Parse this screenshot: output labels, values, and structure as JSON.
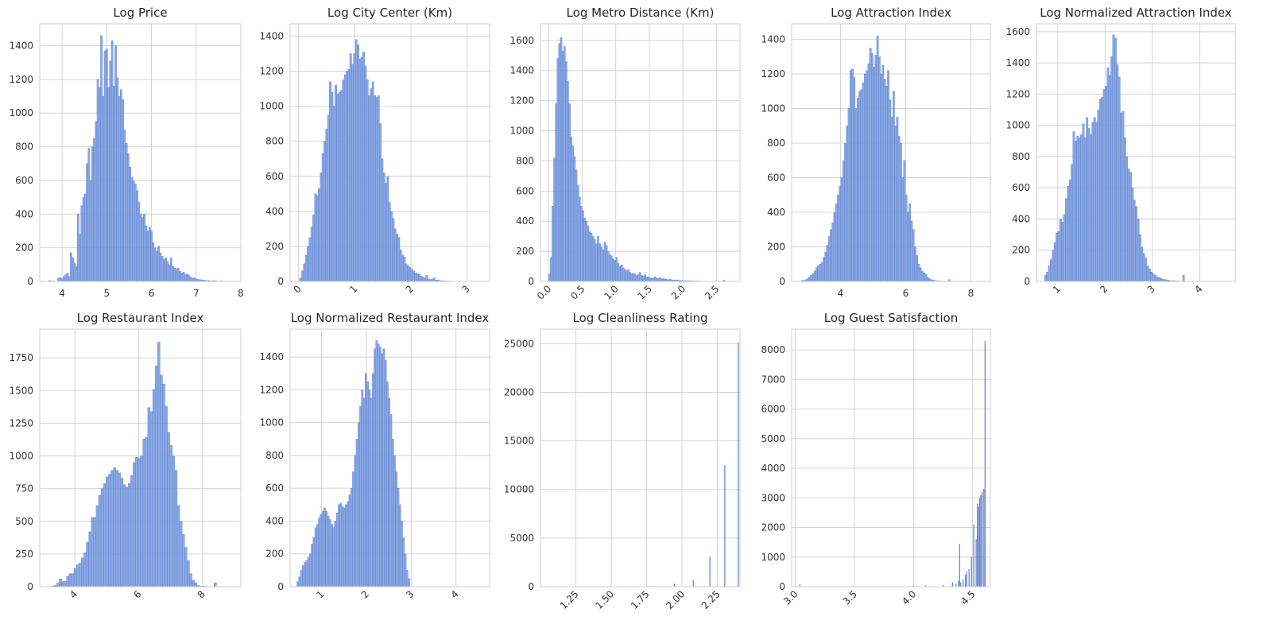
{
  "figure": {
    "bar_color": "#7d9fe0",
    "bar_edge": "#5b7fcf",
    "grid": true
  },
  "chart_data": [
    {
      "type": "bar",
      "title": "Log Price",
      "xlim": [
        3.5,
        8.0
      ],
      "ylim": [
        0,
        1530
      ],
      "xticks": [
        4,
        5,
        6,
        7,
        8
      ],
      "xtick_labels": [
        "4",
        "5",
        "6",
        "7",
        "8"
      ],
      "yticks": [
        0,
        200,
        400,
        600,
        800,
        1000,
        1200,
        1400
      ],
      "ytick_labels": [
        "0",
        "200",
        "400",
        "600",
        "800",
        "1000",
        "1200",
        "1400"
      ],
      "xtick_rotation": 0,
      "bin_start": 3.7,
      "bin_width": 0.04,
      "counts": [
        5,
        0,
        3,
        0,
        0,
        20,
        22,
        15,
        30,
        40,
        50,
        30,
        170,
        140,
        110,
        90,
        400,
        280,
        450,
        500,
        520,
        700,
        790,
        600,
        800,
        850,
        950,
        1200,
        1150,
        1460,
        1100,
        1370,
        1380,
        1150,
        1310,
        1430,
        1160,
        1400,
        1210,
        1100,
        1140,
        1080,
        900,
        820,
        760,
        680,
        620,
        600,
        580,
        540,
        470,
        400,
        380,
        400,
        330,
        300,
        320,
        300,
        230,
        200,
        180,
        210,
        170,
        150,
        130,
        140,
        120,
        100,
        140,
        90,
        80,
        75,
        80,
        60,
        50,
        55,
        40,
        45,
        35,
        25,
        20,
        20,
        15,
        12,
        10,
        10,
        8,
        6,
        5,
        5,
        4,
        3,
        5,
        3,
        2,
        2,
        3,
        1,
        2,
        1,
        1,
        2,
        1,
        1
      ]
    },
    {
      "type": "bar",
      "title": "Log City Center (Km)",
      "xlim": [
        -0.15,
        3.4
      ],
      "ylim": [
        0,
        1470
      ],
      "xticks": [
        0,
        1,
        2,
        3
      ],
      "xtick_labels": [
        "0",
        "1",
        "2",
        "3"
      ],
      "yticks": [
        0,
        200,
        400,
        600,
        800,
        1000,
        1200,
        1400
      ],
      "ytick_labels": [
        "0",
        "200",
        "400",
        "600",
        "800",
        "1000",
        "1200",
        "1400"
      ],
      "xtick_rotation": -45,
      "bin_start": 0.02,
      "bin_width": 0.033,
      "counts": [
        20,
        60,
        100,
        150,
        200,
        250,
        310,
        380,
        500,
        490,
        530,
        620,
        730,
        800,
        870,
        950,
        1140,
        1080,
        1000,
        1120,
        1070,
        1080,
        1090,
        1150,
        1180,
        1200,
        1210,
        1300,
        1240,
        1300,
        1380,
        1350,
        1270,
        1280,
        1310,
        1230,
        1150,
        1060,
        1100,
        1140,
        1060,
        1050,
        1060,
        900,
        700,
        620,
        560,
        600,
        450,
        400,
        360,
        300,
        270,
        250,
        180,
        150,
        140,
        100,
        90,
        80,
        70,
        60,
        50,
        45,
        40,
        30,
        25,
        20,
        35,
        15,
        10,
        12,
        20,
        8,
        8,
        5,
        4,
        4,
        3,
        3,
        2,
        2,
        1,
        1,
        1,
        1,
        1,
        1,
        1,
        1,
        0,
        1,
        1,
        1,
        1,
        1
      ]
    },
    {
      "type": "bar",
      "title": "Log Metro Distance (Km)",
      "xlim": [
        -0.12,
        2.85
      ],
      "ylim": [
        0,
        1710
      ],
      "xticks": [
        0.0,
        0.5,
        1.0,
        1.5,
        2.0,
        2.5
      ],
      "xtick_labels": [
        "0.0",
        "0.5",
        "1.0",
        "1.5",
        "2.0",
        "2.5"
      ],
      "yticks": [
        0,
        200,
        400,
        600,
        800,
        1000,
        1200,
        1400,
        1600
      ],
      "ytick_labels": [
        "0",
        "200",
        "400",
        "600",
        "800",
        "1000",
        "1200",
        "1400",
        "1600"
      ],
      "xtick_rotation": -45,
      "bin_start": 0.0,
      "bin_width": 0.025,
      "counts": [
        50,
        160,
        500,
        820,
        1180,
        1480,
        1580,
        1620,
        1530,
        1560,
        1460,
        1330,
        1180,
        960,
        900,
        830,
        740,
        640,
        560,
        500,
        470,
        420,
        400,
        370,
        330,
        320,
        300,
        280,
        250,
        300,
        250,
        230,
        210,
        260,
        240,
        200,
        180,
        170,
        150,
        140,
        160,
        120,
        100,
        110,
        90,
        80,
        70,
        80,
        60,
        50,
        55,
        50,
        40,
        45,
        60,
        40,
        35,
        45,
        30,
        30,
        25,
        20,
        25,
        30,
        20,
        20,
        25,
        15,
        20,
        15,
        15,
        10,
        15,
        10,
        10,
        8,
        10,
        8,
        6,
        6,
        5,
        5,
        5,
        4,
        4,
        3,
        3,
        3,
        3,
        2,
        2,
        2,
        2,
        2,
        1,
        1,
        1,
        1,
        1,
        1,
        1,
        1,
        1,
        1,
        8
      ]
    },
    {
      "type": "bar",
      "title": "Log Attraction Index",
      "xlim": [
        2.5,
        8.6
      ],
      "ylim": [
        0,
        1490
      ],
      "xticks": [
        4,
        6,
        8
      ],
      "xtick_labels": [
        "4",
        "6",
        "8"
      ],
      "yticks": [
        0,
        200,
        400,
        600,
        800,
        1000,
        1200,
        1400
      ],
      "ytick_labels": [
        "0",
        "200",
        "400",
        "600",
        "800",
        "1000",
        "1200",
        "1400"
      ],
      "xtick_rotation": 0,
      "bin_start": 2.8,
      "bin_width": 0.055,
      "counts": [
        5,
        5,
        10,
        15,
        25,
        35,
        45,
        60,
        80,
        90,
        100,
        110,
        140,
        170,
        210,
        260,
        300,
        340,
        400,
        450,
        500,
        550,
        600,
        700,
        800,
        900,
        1000,
        1220,
        1230,
        1180,
        1000,
        1060,
        1100,
        1110,
        1150,
        1200,
        1220,
        1260,
        1350,
        1320,
        1240,
        1310,
        1420,
        1300,
        1200,
        1250,
        1170,
        1130,
        1220,
        1050,
        950,
        1100,
        900,
        950,
        840,
        800,
        600,
        700,
        500,
        400,
        450,
        350,
        300,
        200,
        150,
        100,
        80,
        60,
        50,
        40,
        25,
        15,
        10,
        8,
        5,
        4,
        3,
        2,
        2,
        1,
        1,
        1,
        10
      ]
    },
    {
      "type": "bar",
      "title": "Log Normalized Attraction Index",
      "xlim": [
        0.55,
        4.75
      ],
      "ylim": [
        0,
        1650
      ],
      "xticks": [
        1,
        2,
        3,
        4
      ],
      "xtick_labels": [
        "1",
        "2",
        "3",
        "4"
      ],
      "yticks": [
        0,
        200,
        400,
        600,
        800,
        1000,
        1200,
        1400,
        1600
      ],
      "ytick_labels": [
        "0",
        "200",
        "400",
        "600",
        "800",
        "1000",
        "1200",
        "1400",
        "1600"
      ],
      "xtick_rotation": -45,
      "bin_start": 0.72,
      "bin_width": 0.04,
      "counts": [
        40,
        60,
        100,
        140,
        200,
        250,
        310,
        320,
        400,
        380,
        430,
        530,
        610,
        650,
        750,
        960,
        900,
        930,
        920,
        940,
        1010,
        920,
        1050,
        980,
        940,
        1020,
        1050,
        1020,
        1100,
        1170,
        1180,
        1230,
        1250,
        1370,
        1320,
        1440,
        1580,
        1560,
        1390,
        1310,
        1080,
        1090,
        920,
        800,
        720,
        700,
        600,
        520,
        480,
        400,
        300,
        220,
        180,
        150,
        100,
        80,
        60,
        50,
        40,
        30,
        25,
        20,
        15,
        12,
        10,
        8,
        5,
        5,
        4,
        3,
        3,
        2,
        2,
        40
      ]
    },
    {
      "type": "bar",
      "title": "Log Restaurant Index",
      "xlim": [
        2.9,
        9.2
      ],
      "ylim": [
        0,
        1970
      ],
      "xticks": [
        4,
        6,
        8
      ],
      "xtick_labels": [
        "4",
        "6",
        "8"
      ],
      "yticks": [
        0,
        250,
        500,
        750,
        1000,
        1250,
        1500,
        1750
      ],
      "ytick_labels": [
        "0",
        "250",
        "500",
        "750",
        "1000",
        "1250",
        "1500",
        "1750"
      ],
      "xtick_rotation": -45,
      "bin_start": 3.28,
      "bin_width": 0.077,
      "counts": [
        5,
        10,
        30,
        60,
        40,
        40,
        80,
        100,
        100,
        140,
        170,
        180,
        220,
        260,
        340,
        420,
        530,
        530,
        620,
        700,
        750,
        790,
        840,
        860,
        890,
        910,
        890,
        870,
        830,
        780,
        760,
        790,
        850,
        950,
        990,
        980,
        1000,
        1130,
        1140,
        1370,
        1340,
        1510,
        1690,
        1870,
        1620,
        1550,
        1380,
        1180,
        1080,
        1000,
        890,
        620,
        500,
        400,
        300,
        200,
        100,
        50,
        30,
        10,
        5,
        5,
        3,
        2,
        2,
        1,
        30
      ]
    },
    {
      "type": "bar",
      "title": "Log Normalized Restaurant Index",
      "xlim": [
        0.3,
        4.75
      ],
      "ylim": [
        0,
        1570
      ],
      "xticks": [
        1,
        2,
        3,
        4
      ],
      "xtick_labels": [
        "1",
        "2",
        "3",
        "4"
      ],
      "yticks": [
        0,
        200,
        400,
        600,
        800,
        1000,
        1200,
        1400
      ],
      "ytick_labels": [
        "0",
        "200",
        "400",
        "600",
        "800",
        "1000",
        "1200",
        "1400"
      ],
      "xtick_rotation": -45,
      "bin_start": 0.45,
      "bin_width": 0.04,
      "counts": [
        30,
        60,
        100,
        130,
        150,
        160,
        180,
        200,
        260,
        300,
        360,
        380,
        420,
        440,
        460,
        480,
        460,
        430,
        410,
        380,
        360,
        400,
        450,
        500,
        510,
        490,
        480,
        500,
        520,
        560,
        600,
        700,
        800,
        900,
        1000,
        1100,
        1200,
        1150,
        1300,
        1250,
        1200,
        1150,
        1300,
        1450,
        1500,
        1480,
        1460,
        1420,
        1450,
        1380,
        1250,
        1150,
        1050,
        900,
        800,
        700,
        600,
        500,
        400,
        300,
        200,
        100,
        50
      ]
    },
    {
      "type": "bar",
      "title": "Log Cleanliness Rating",
      "xlim": [
        1.0,
        2.41
      ],
      "ylim": [
        0,
        26500
      ],
      "xticks": [
        1.25,
        1.5,
        1.75,
        2.0,
        2.25
      ],
      "xtick_labels": [
        "1.25",
        "1.50",
        "1.75",
        "2.00",
        "2.25"
      ],
      "yticks": [
        0,
        5000,
        10000,
        15000,
        20000,
        25000
      ],
      "ytick_labels": [
        "0",
        "5000",
        "10000",
        "15000",
        "20000",
        "25000"
      ],
      "xtick_rotation": -45,
      "x": [
        1.0986,
        1.3863,
        1.6094,
        1.7918,
        1.9459,
        2.0794,
        2.1972,
        2.3026,
        2.3979
      ],
      "values": [
        60,
        30,
        50,
        90,
        300,
        700,
        3100,
        12500,
        25100
      ]
    },
    {
      "type": "bar",
      "title": "Log Guest Satisfaction",
      "xlim": [
        2.97,
        4.65
      ],
      "ylim": [
        0,
        8700
      ],
      "xticks": [
        3.0,
        3.5,
        4.0,
        4.5
      ],
      "xtick_labels": [
        "3.0",
        "3.5",
        "4.0",
        "4.5"
      ],
      "yticks": [
        0,
        1000,
        2000,
        3000,
        4000,
        5000,
        6000,
        7000,
        8000
      ],
      "ytick_labels": [
        "0",
        "1000",
        "2000",
        "3000",
        "4000",
        "5000",
        "6000",
        "7000",
        "8000"
      ],
      "xtick_rotation": -45,
      "x": [
        3.04,
        4.0,
        4.1,
        4.25,
        4.33,
        4.36,
        4.38,
        4.39,
        4.4,
        4.42,
        4.44,
        4.45,
        4.47,
        4.49,
        4.51,
        4.53,
        4.54,
        4.55,
        4.56,
        4.57,
        4.58,
        4.595,
        4.605
      ],
      "values": [
        80,
        30,
        50,
        60,
        150,
        100,
        200,
        1450,
        150,
        250,
        400,
        500,
        600,
        1000,
        2100,
        1600,
        2800,
        2700,
        3000,
        3100,
        3200,
        3300,
        8300
      ]
    }
  ]
}
